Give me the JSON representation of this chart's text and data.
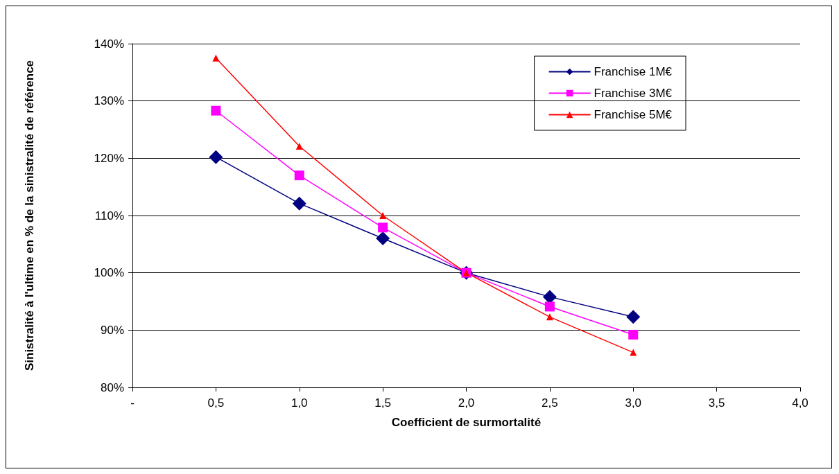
{
  "chart_data": {
    "type": "line",
    "xlabel": "Coefficient de surmortalité",
    "ylabel": "Sinistralité à l'ultime en % de la sinistralité de référence",
    "x": [
      0.5,
      1.0,
      1.5,
      2.0,
      2.5,
      3.0
    ],
    "series": [
      {
        "name": "Franchise 1M€",
        "color": "#000080",
        "marker": "diamond",
        "values": [
          120.2,
          112.1,
          106.0,
          100.0,
          95.8,
          92.3
        ]
      },
      {
        "name": "Franchise 3M€",
        "color": "#ff00ff",
        "marker": "square",
        "values": [
          128.3,
          117.0,
          107.9,
          100.0,
          94.1,
          89.2
        ]
      },
      {
        "name": "Franchise 5M€",
        "color": "#ff0000",
        "marker": "triangle",
        "values": [
          137.5,
          122.1,
          110.0,
          100.0,
          92.3,
          86.1
        ]
      }
    ],
    "xlim": [
      0,
      4
    ],
    "xticks": [
      {
        "value": 0,
        "label": "-"
      },
      {
        "value": 0.5,
        "label": "0,5"
      },
      {
        "value": 1,
        "label": "1,0"
      },
      {
        "value": 1.5,
        "label": "1,5"
      },
      {
        "value": 2,
        "label": "2,0"
      },
      {
        "value": 2.5,
        "label": "2,5"
      },
      {
        "value": 3,
        "label": "3,0"
      },
      {
        "value": 3.5,
        "label": "3,5"
      },
      {
        "value": 4,
        "label": "4,0"
      }
    ],
    "ylim": [
      80,
      140
    ],
    "yticks": [
      {
        "value": 80,
        "label": "80%"
      },
      {
        "value": 90,
        "label": "90%"
      },
      {
        "value": 100,
        "label": "100%"
      },
      {
        "value": 110,
        "label": "110%"
      },
      {
        "value": 120,
        "label": "120%"
      },
      {
        "value": 130,
        "label": "130%"
      },
      {
        "value": 140,
        "label": "140%"
      }
    ],
    "grid": "y",
    "legend": "top right",
    "line_style": "solid"
  }
}
